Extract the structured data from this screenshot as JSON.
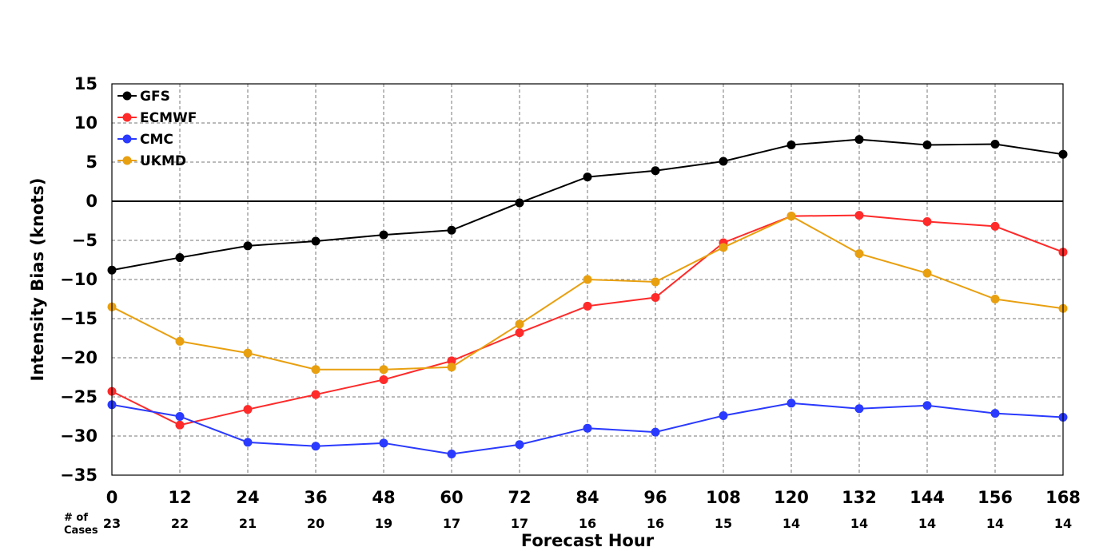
{
  "chart_data": {
    "type": "line",
    "xlabel": "Forecast Hour",
    "ylabel": "Intensity Bias (knots)",
    "x": [
      0,
      12,
      24,
      36,
      48,
      60,
      72,
      84,
      96,
      108,
      120,
      132,
      144,
      156,
      168
    ],
    "xlim": [
      0,
      168
    ],
    "ylim": [
      -35,
      15
    ],
    "yticks": [
      15,
      10,
      5,
      0,
      -5,
      -10,
      -15,
      -20,
      -25,
      -30,
      -35
    ],
    "grid": true,
    "legend_position": "top-left",
    "cases_header": [
      "# of",
      "Cases"
    ],
    "cases": [
      23,
      22,
      21,
      20,
      19,
      17,
      17,
      16,
      16,
      15,
      14,
      14,
      14,
      14,
      14
    ],
    "series": [
      {
        "name": "GFS",
        "color": "#000000",
        "values": [
          -8.8,
          -7.2,
          -5.7,
          -5.1,
          -4.3,
          -3.7,
          -0.2,
          3.1,
          3.9,
          5.1,
          7.2,
          7.9,
          7.2,
          7.3,
          6.0
        ]
      },
      {
        "name": "ECMWF",
        "color": "#ff2a2a",
        "values": [
          -24.3,
          -28.6,
          -26.6,
          -24.7,
          -22.8,
          -20.4,
          -16.8,
          -13.4,
          -12.3,
          -5.3,
          -1.9,
          -1.8,
          -2.6,
          -3.2,
          -6.5
        ]
      },
      {
        "name": "CMC",
        "color": "#2a3aff",
        "values": [
          -26.0,
          -27.5,
          -30.8,
          -31.3,
          -30.9,
          -32.3,
          -31.1,
          -29.0,
          -29.5,
          -27.4,
          -25.8,
          -26.5,
          -26.1,
          -27.1,
          -27.6
        ]
      },
      {
        "name": "UKMD",
        "color": "#e8a010",
        "values": [
          -13.5,
          -17.9,
          -19.4,
          -21.5,
          -21.5,
          -21.2,
          -15.7,
          -10.0,
          -10.3,
          -5.9,
          -1.9,
          -6.7,
          -9.2,
          -12.5,
          -13.7
        ]
      }
    ]
  }
}
